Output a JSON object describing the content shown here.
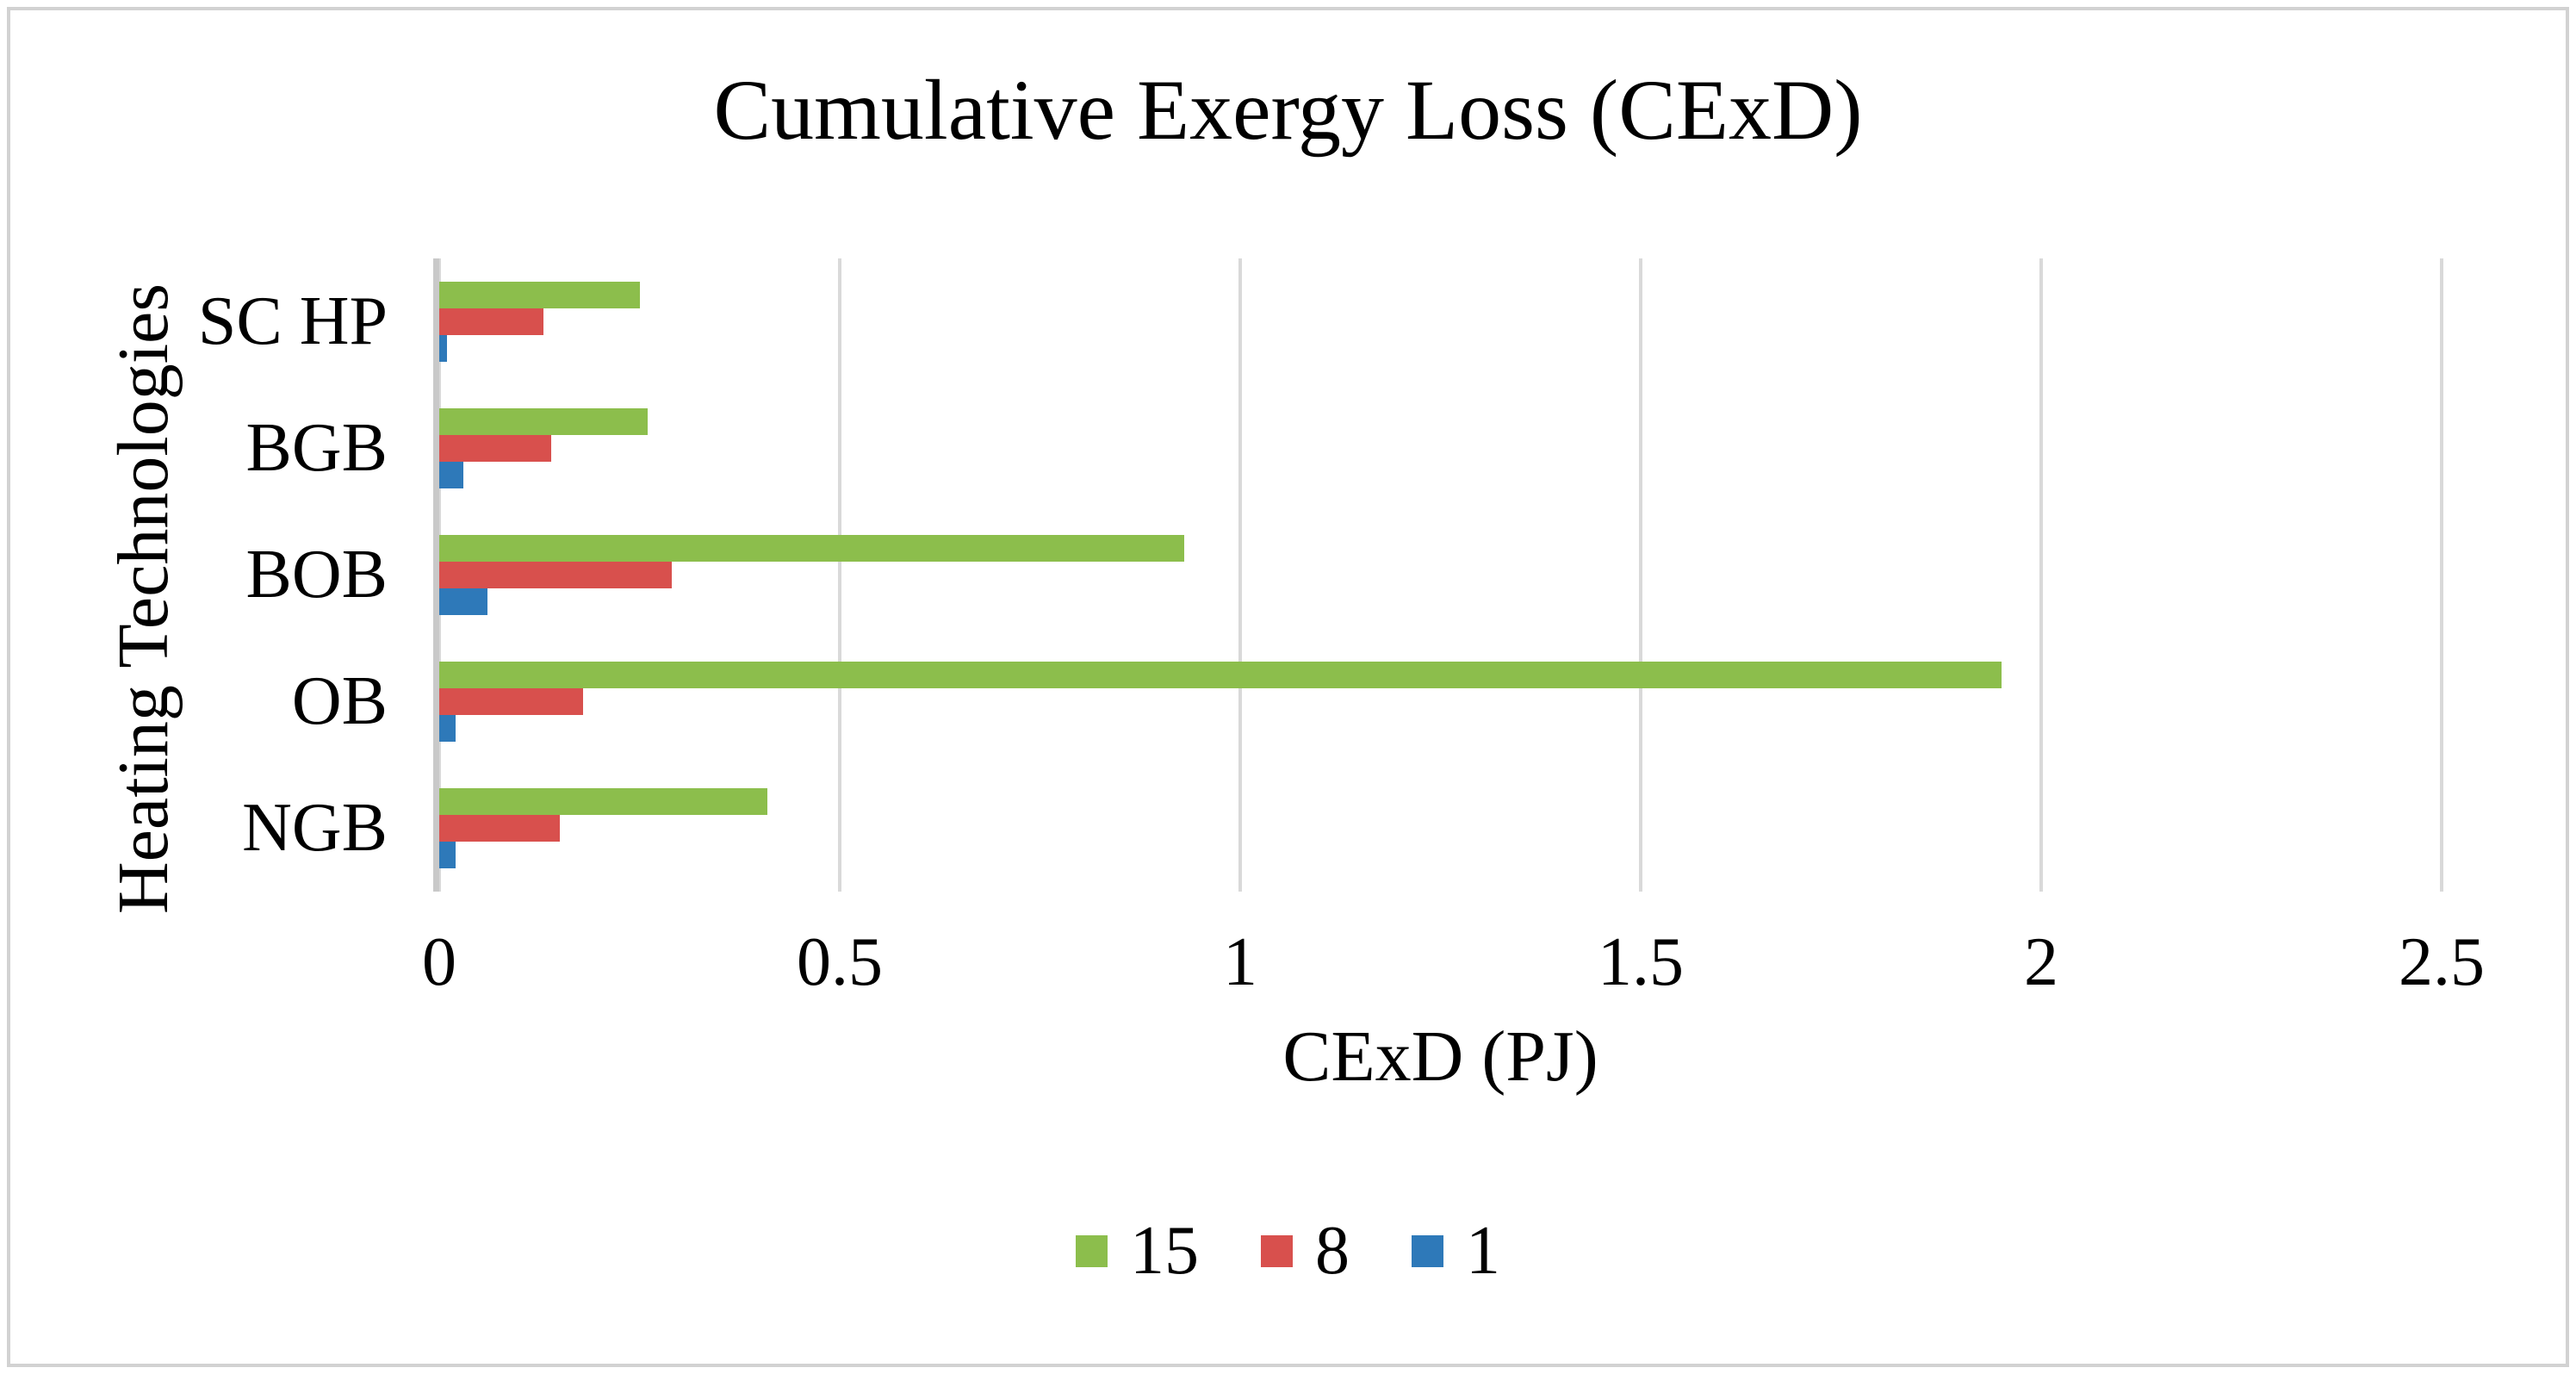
{
  "chart": {
    "title": "Cumulative Exergy Loss (CExD)",
    "x_axis_title": "CExD (PJ)",
    "y_axis_title": "Heating Technologies"
  },
  "chart_data": {
    "type": "bar",
    "orientation": "horizontal",
    "title": "Cumulative Exergy Loss (CExD)",
    "xlabel": "CExD (PJ)",
    "ylabel": "Heating Technologies",
    "categories": [
      "SC HP",
      "BGB",
      "BOB",
      "OB",
      "NGB"
    ],
    "series": [
      {
        "name": "15",
        "color": "#8CBE4C",
        "values": [
          0.25,
          0.26,
          0.93,
          1.95,
          0.41
        ]
      },
      {
        "name": "8",
        "color": "#D8504D",
        "values": [
          0.13,
          0.14,
          0.29,
          0.18,
          0.15
        ]
      },
      {
        "name": "1",
        "color": "#2E79B9",
        "values": [
          0.01,
          0.03,
          0.06,
          0.02,
          0.02
        ]
      }
    ],
    "xlim": [
      0,
      2.5
    ],
    "x_ticks": [
      0,
      0.5,
      1,
      1.5,
      2,
      2.5
    ],
    "x_tick_labels": [
      "0",
      "0.5",
      "1",
      "1.5",
      "2",
      "2.5"
    ],
    "grid": "vertical-gridlines",
    "legend_position": "bottom",
    "legend_labels": [
      "15",
      "8",
      "1"
    ]
  },
  "colors": {
    "series_15": "#8CBE4C",
    "series_8": "#D8504D",
    "series_1": "#2E79B9",
    "gridline": "#D9D9D9",
    "axis_line": "#C9C9C9",
    "text": "#000000",
    "frame_border": "#D2D2D2",
    "background": "#FFFFFF"
  }
}
